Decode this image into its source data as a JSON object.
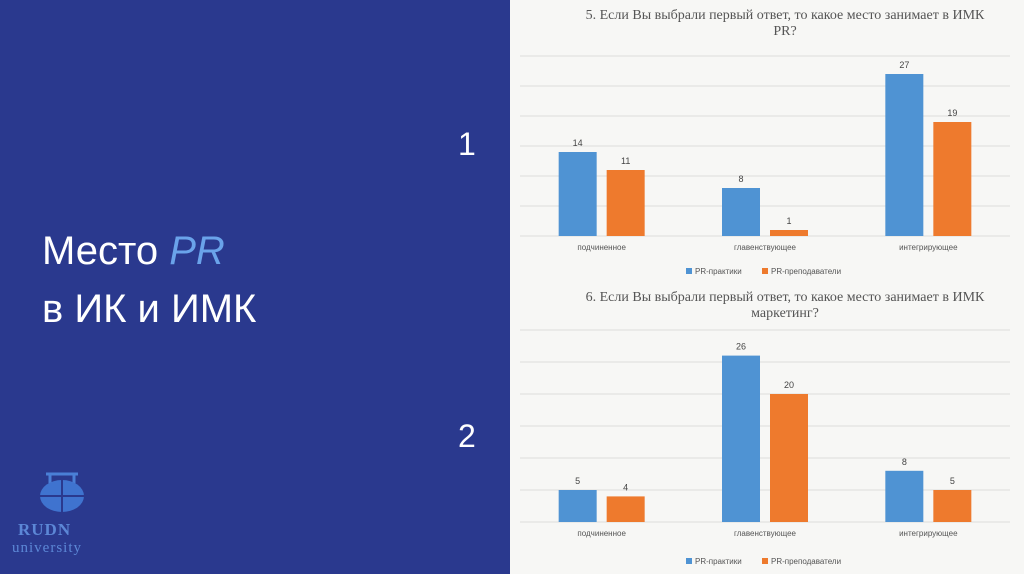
{
  "slide": {
    "title_prefix": "Место ",
    "title_accent": "PR",
    "title_line2": "в ИК и ИМК",
    "number_1": "1",
    "number_2": "2",
    "logo_line1": "RUDN",
    "logo_line2": "university"
  },
  "colors": {
    "panel": "#2a398e",
    "series1": "#4f93d3",
    "series2": "#ee7a2d",
    "accent": "#6aa3ea"
  },
  "chart_data": [
    {
      "type": "bar",
      "title_line1": "5. Если Вы выбрали первый ответ, то  какое место занимает в ИМК",
      "title_line2": "PR?",
      "categories": [
        "подчиненное",
        "главенствующее",
        "интегрирующее"
      ],
      "series": [
        {
          "name": "PR-практики",
          "values": [
            14,
            8,
            27
          ]
        },
        {
          "name": "PR-преподаватели",
          "values": [
            11,
            1,
            19
          ]
        }
      ],
      "ylim": [
        0,
        30
      ],
      "grid": true,
      "legend": "bottom"
    },
    {
      "type": "bar",
      "title_line1": "6. Если Вы выбрали первый ответ, то  какое место занимает в ИМК",
      "title_line2": "маркетинг?",
      "categories": [
        "подчиненное",
        "главенствующее",
        "интегрирующее"
      ],
      "series": [
        {
          "name": "PR-практики",
          "values": [
            5,
            26,
            8
          ]
        },
        {
          "name": "PR-преподаватели",
          "values": [
            4,
            20,
            5
          ]
        }
      ],
      "ylim": [
        0,
        30
      ],
      "grid": true,
      "legend": "bottom"
    }
  ]
}
